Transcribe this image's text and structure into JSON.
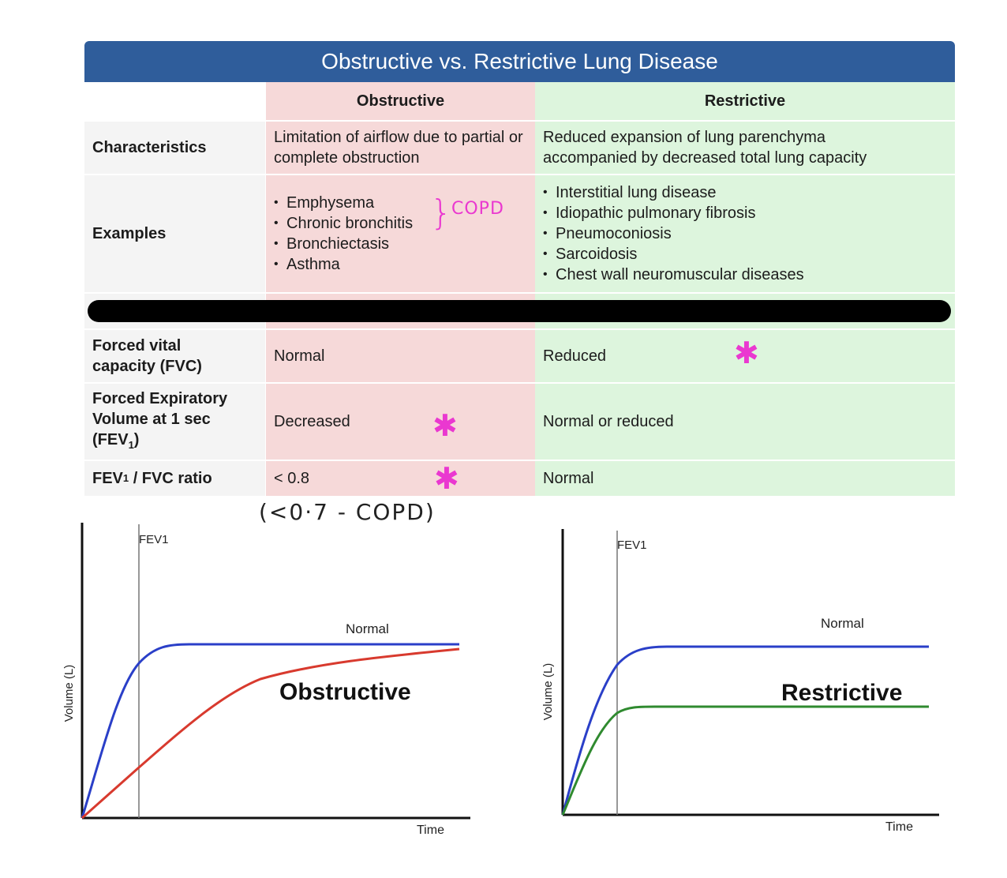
{
  "table": {
    "title": "Obstructive vs. Restrictive Lung Disease",
    "col_obstructive": "Obstructive",
    "col_restrictive": "Restrictive",
    "rows": {
      "characteristics": {
        "label": "Characteristics",
        "obstructive": "Limitation of airflow due to partial or complete obstruction",
        "restrictive": "Reduced expansion of lung parenchyma accompanied by decreased total lung capacity"
      },
      "examples": {
        "label": "Examples",
        "obstructive": [
          "Emphysema",
          "Chronic bronchitis",
          "Bronchiectasis",
          "Asthma"
        ],
        "restrictive": [
          "Interstitial lung disease",
          "Idiopathic pulmonary fibrosis",
          "Pneumoconiosis",
          "Sarcoidosis",
          "Chest wall neuromuscular diseases"
        ]
      },
      "fvc": {
        "label_line1": "Forced vital",
        "label_line2": "capacity (FVC)",
        "obstructive": "Normal",
        "restrictive": "Reduced"
      },
      "fev1": {
        "label_line1": "Forced Expiratory",
        "label_line2": "Volume at 1 sec",
        "label_line3": "(FEV",
        "label_sub": "1",
        "label_end": ")",
        "obstructive": "Decreased",
        "restrictive": "Normal or reduced"
      },
      "ratio": {
        "label_pre": "FEV",
        "label_sub": "1",
        "label_post": " / FVC ratio",
        "obstructive": "< 0.8",
        "restrictive": "Normal"
      }
    }
  },
  "annotations": {
    "copd_brace": "}",
    "copd_label": "COPD",
    "star": "✱",
    "ratio_note": "(<0·7 - COPD)",
    "color": "#ea38d0"
  },
  "diagrams": [
    {
      "fev1_label": "FEV1",
      "y_axis_label": "Volume (L)",
      "x_axis_label": "Time",
      "normal_label": "Normal",
      "condition_label": "Obstructive",
      "normal_color": "#2a3fc8",
      "condition_color": "#d83a2e"
    },
    {
      "fev1_label": "FEV1",
      "y_axis_label": "Volume (L)",
      "x_axis_label": "Time",
      "normal_label": "Normal",
      "condition_label": "Restrictive",
      "normal_color": "#2a3fc8",
      "condition_color": "#2f8a2f"
    }
  ]
}
